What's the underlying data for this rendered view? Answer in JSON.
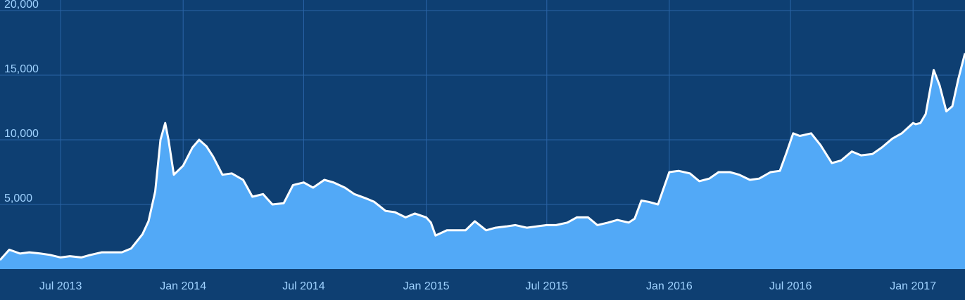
{
  "chart_data": {
    "type": "area",
    "title": "",
    "xlabel": "",
    "ylabel": "",
    "ylim": [
      0,
      20000
    ],
    "y_ticks": [
      {
        "value": 5000,
        "label": "5,000"
      },
      {
        "value": 10000,
        "label": "10,000"
      },
      {
        "value": 15000,
        "label": "15,000"
      },
      {
        "value": 20000,
        "label": "20,000"
      }
    ],
    "x_ticks": [
      {
        "value": "2013-07-01",
        "label": "Jul 2013"
      },
      {
        "value": "2014-01-01",
        "label": "Jan 2014"
      },
      {
        "value": "2014-07-01",
        "label": "Jul 2014"
      },
      {
        "value": "2015-01-01",
        "label": "Jan 2015"
      },
      {
        "value": "2015-07-01",
        "label": "Jul 2015"
      },
      {
        "value": "2016-01-01",
        "label": "Jan 2016"
      },
      {
        "value": "2016-07-01",
        "label": "Jul 2016"
      },
      {
        "value": "2017-01-01",
        "label": "Jan 2017"
      }
    ],
    "xlim": [
      "2013-04-01",
      "2017-03-20"
    ],
    "grid": true,
    "colors": {
      "background": "#0e3f72",
      "grid": "#2a64a6",
      "fill": "#52a9f7",
      "line": "#ffffff",
      "tick_text": "#9fd2ff"
    },
    "series": [
      {
        "x": [
          "2013-04-01",
          "2013-04-15",
          "2013-05-01",
          "2013-05-15",
          "2013-06-01",
          "2013-06-15",
          "2013-07-01",
          "2013-07-15",
          "2013-08-01",
          "2013-08-15",
          "2013-09-01",
          "2013-09-15",
          "2013-10-01",
          "2013-10-15",
          "2013-11-01",
          "2013-11-10",
          "2013-11-20",
          "2013-11-28",
          "2013-12-05",
          "2013-12-10",
          "2013-12-18",
          "2014-01-01",
          "2014-01-15",
          "2014-01-25",
          "2014-02-05",
          "2014-02-15",
          "2014-03-01",
          "2014-03-15",
          "2014-04-01",
          "2014-04-15",
          "2014-05-01",
          "2014-05-15",
          "2014-06-01",
          "2014-06-15",
          "2014-07-01",
          "2014-07-15",
          "2014-08-01",
          "2014-08-15",
          "2014-09-01",
          "2014-09-15",
          "2014-10-01",
          "2014-10-15",
          "2014-11-01",
          "2014-11-15",
          "2014-12-01",
          "2014-12-15",
          "2015-01-01",
          "2015-01-08",
          "2015-01-15",
          "2015-02-01",
          "2015-02-15",
          "2015-03-01",
          "2015-03-15",
          "2015-04-01",
          "2015-04-15",
          "2015-05-01",
          "2015-05-15",
          "2015-06-01",
          "2015-06-15",
          "2015-07-01",
          "2015-07-15",
          "2015-08-01",
          "2015-08-15",
          "2015-09-01",
          "2015-09-15",
          "2015-10-01",
          "2015-10-15",
          "2015-11-01",
          "2015-11-10",
          "2015-11-20",
          "2015-12-01",
          "2015-12-15",
          "2016-01-01",
          "2016-01-15",
          "2016-02-01",
          "2016-02-15",
          "2016-03-01",
          "2016-03-15",
          "2016-04-01",
          "2016-04-15",
          "2016-05-01",
          "2016-05-15",
          "2016-06-01",
          "2016-06-15",
          "2016-06-25",
          "2016-07-05",
          "2016-07-15",
          "2016-08-01",
          "2016-08-15",
          "2016-09-01",
          "2016-09-15",
          "2016-10-01",
          "2016-10-15",
          "2016-11-01",
          "2016-11-15",
          "2016-12-01",
          "2016-12-15",
          "2017-01-01",
          "2017-01-05",
          "2017-01-12",
          "2017-01-20",
          "2017-02-01",
          "2017-02-10",
          "2017-02-20",
          "2017-03-01",
          "2017-03-10",
          "2017-03-20"
        ],
        "values": [
          700,
          1500,
          1200,
          1300,
          1200,
          1100,
          900,
          1000,
          900,
          1100,
          1300,
          1300,
          1300,
          1600,
          2700,
          3700,
          6000,
          10000,
          11300,
          10000,
          7300,
          8000,
          9400,
          10000,
          9500,
          8700,
          7300,
          7400,
          6900,
          5600,
          5800,
          5000,
          5100,
          6500,
          6700,
          6300,
          6900,
          6700,
          6300,
          5800,
          5500,
          5200,
          4500,
          4400,
          4000,
          4300,
          4000,
          3600,
          2600,
          3000,
          3000,
          3000,
          3700,
          3000,
          3200,
          3300,
          3400,
          3200,
          3300,
          3400,
          3400,
          3600,
          4000,
          4000,
          3400,
          3600,
          3800,
          3600,
          3900,
          5300,
          5200,
          5000,
          7500,
          7600,
          7400,
          6800,
          7000,
          7500,
          7500,
          7300,
          6900,
          7000,
          7500,
          7600,
          9000,
          10500,
          10300,
          10500,
          9600,
          8200,
          8400,
          9100,
          8800,
          8900,
          9400,
          10100,
          10500,
          11300,
          11200,
          11300,
          12000,
          15400,
          14200,
          12200,
          12600,
          14700,
          16700
        ]
      }
    ]
  }
}
